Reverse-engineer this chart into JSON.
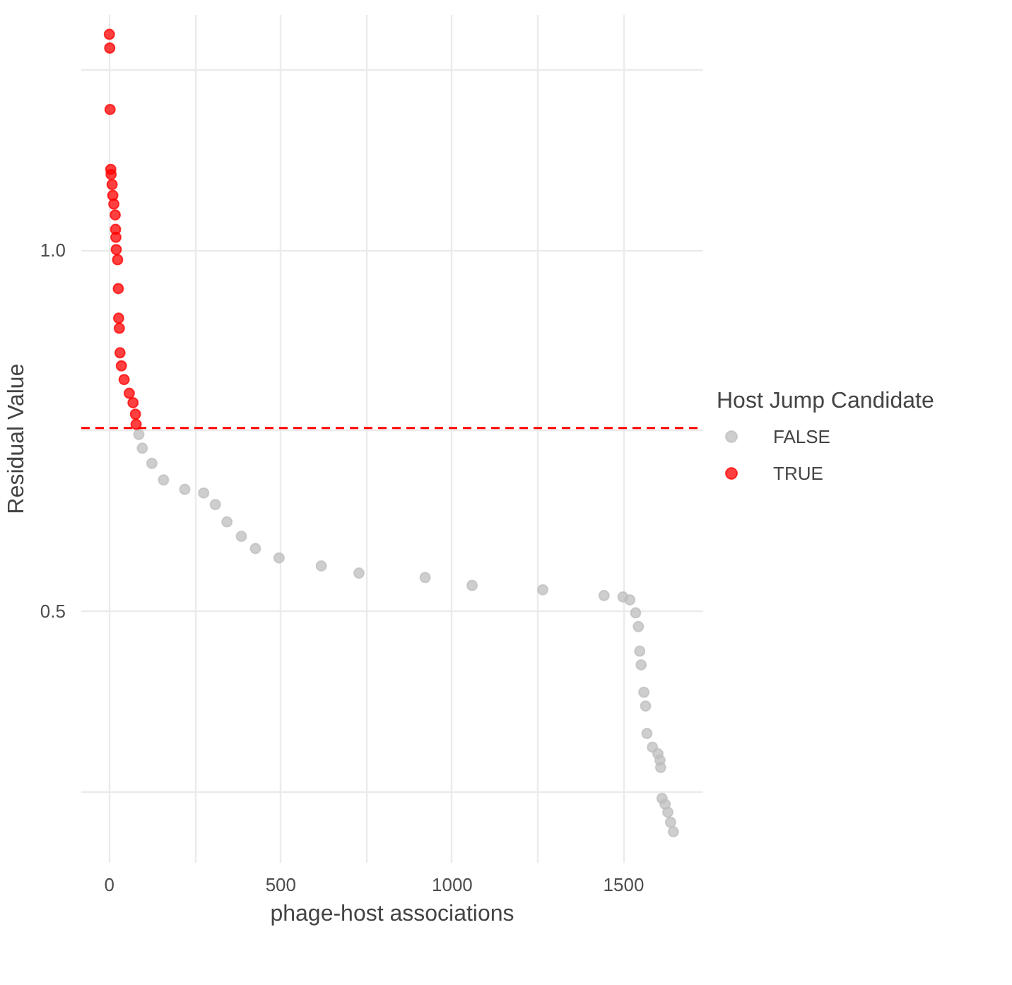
{
  "chart_data": {
    "type": "scatter",
    "xlabel": "phage-host associations",
    "ylabel": "Residual Value",
    "legend_title": "Host Jump Candidate",
    "xlim": [
      -82,
      1732
    ],
    "ylim": [
      0.152,
      1.326
    ],
    "xticks": [
      0,
      {
        "value": 250,
        "label": null
      },
      500,
      {
        "value": 750,
        "label": null
      },
      1000,
      {
        "value": 1250,
        "label": null
      },
      1500
    ],
    "yticks": [
      {
        "value": 0.25,
        "label": null
      },
      0.5,
      {
        "value": 0.75,
        "label": null
      },
      {
        "value": 1.0,
        "label": "1.0"
      },
      {
        "value": 1.25,
        "label": null
      }
    ],
    "grid": true,
    "legend": "right",
    "marker": "circle",
    "series": [
      {
        "name": "FALSE",
        "color": "#bebebe",
        "x": [
          86,
          96,
          124,
          158,
          220,
          275,
          309,
          343,
          385,
          426,
          495,
          618,
          728,
          921,
          1058,
          1264,
          1443,
          1498,
          1518,
          1535,
          1543,
          1547,
          1551,
          1559,
          1564,
          1568,
          1584,
          1600,
          1606,
          1608,
          1612,
          1621,
          1629,
          1637,
          1645
        ],
        "values": [
          0.745,
          0.726,
          0.705,
          0.682,
          0.669,
          0.664,
          0.648,
          0.624,
          0.604,
          0.587,
          0.574,
          0.563,
          0.553,
          0.547,
          0.536,
          0.53,
          0.522,
          0.52,
          0.516,
          0.498,
          0.479,
          0.445,
          0.426,
          0.388,
          0.369,
          0.331,
          0.312,
          0.303,
          0.294,
          0.284,
          0.241,
          0.233,
          0.222,
          0.208,
          0.195
        ]
      },
      {
        "name": "TRUE",
        "color": "#ff0000",
        "x": [
          0,
          1,
          2,
          4,
          5,
          8,
          10,
          13,
          17,
          18,
          19,
          20,
          24,
          26,
          27,
          29,
          31,
          35,
          43,
          58,
          69,
          76,
          78
        ],
        "values": [
          1.299,
          1.28,
          1.195,
          1.112,
          1.105,
          1.091,
          1.076,
          1.064,
          1.049,
          1.029,
          1.018,
          1.001,
          0.987,
          0.947,
          0.906,
          0.892,
          0.858,
          0.84,
          0.821,
          0.802,
          0.789,
          0.773,
          0.759
        ]
      }
    ],
    "ref_lines": [
      {
        "axis": "y",
        "value": 0.754,
        "color": "#ff0000",
        "line_style": "dashed"
      }
    ]
  }
}
